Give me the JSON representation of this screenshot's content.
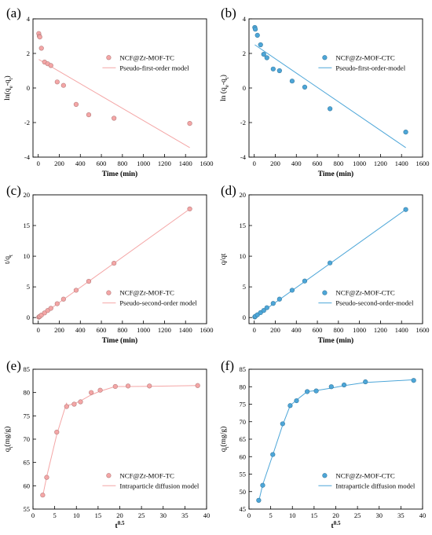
{
  "chart_data": [
    {
      "type": "scatter",
      "panel_label": "(a)",
      "xlabel": "Time (min)",
      "ylabel": "ln(qe-qt)",
      "xlim": [
        -50,
        1600
      ],
      "ylim": [
        -4,
        4
      ],
      "xticks": [
        0,
        200,
        400,
        600,
        800,
        1000,
        1200,
        1400,
        1600
      ],
      "yticks": [
        -4,
        -2,
        0,
        2,
        4
      ],
      "color": "#f4a6a6",
      "legend": {
        "position": "right-top",
        "points": "NCF@Zr-MOF-TC",
        "line": "Pseudo-first-order model"
      },
      "series": [
        {
          "name": "NCF@Zr-MOF-TC",
          "kind": "points",
          "x": [
            5,
            10,
            15,
            30,
            60,
            90,
            120,
            180,
            240,
            360,
            480,
            720,
            1440
          ],
          "y": [
            3.15,
            3.0,
            2.95,
            2.3,
            1.5,
            1.4,
            1.3,
            0.35,
            0.15,
            -0.95,
            -1.55,
            -1.75,
            -2.05
          ]
        },
        {
          "name": "Pseudo-first-order model",
          "kind": "line",
          "x": [
            5,
            1440
          ],
          "y": [
            1.65,
            -3.45
          ]
        }
      ]
    },
    {
      "type": "scatter",
      "panel_label": "(b)",
      "xlabel": "Time (min)",
      "ylabel": "ln (qe-qt)",
      "xlim": [
        -50,
        1600
      ],
      "ylim": [
        -4,
        4
      ],
      "xticks": [
        0,
        200,
        400,
        600,
        800,
        1000,
        1200,
        1400,
        1600
      ],
      "yticks": [
        -4,
        -2,
        0,
        2,
        4
      ],
      "color": "#4da6d8",
      "legend": {
        "position": "right-top",
        "points": "NCF@Zr-MOF-CTC",
        "line": "Pseudo-first-order-model"
      },
      "series": [
        {
          "name": "NCF@Zr-MOF-CTC",
          "kind": "points",
          "x": [
            5,
            10,
            30,
            60,
            90,
            120,
            180,
            240,
            360,
            480,
            720,
            1440
          ],
          "y": [
            3.5,
            3.4,
            3.05,
            2.5,
            1.95,
            1.75,
            1.1,
            1.0,
            0.4,
            0.05,
            -1.2,
            -2.55
          ]
        },
        {
          "name": "Pseudo-first-order-model",
          "kind": "line",
          "x": [
            5,
            1440
          ],
          "y": [
            2.5,
            -3.45
          ]
        }
      ]
    },
    {
      "type": "scatter",
      "panel_label": "(c)",
      "xlabel": "Time (min)",
      "ylabel": "t/qt",
      "xlim": [
        -50,
        1600
      ],
      "ylim": [
        -1,
        20
      ],
      "xticks": [
        0,
        200,
        400,
        600,
        800,
        1000,
        1200,
        1400,
        1600
      ],
      "yticks": [
        0,
        5,
        10,
        15,
        20
      ],
      "color": "#f4a6a6",
      "legend": {
        "position": "right-bottom",
        "points": "NCF@Zr-MOF-TC",
        "line": "Pseudo-second-order model"
      },
      "series": [
        {
          "name": "NCF@Zr-MOF-TC",
          "kind": "points",
          "x": [
            5,
            10,
            15,
            30,
            60,
            90,
            120,
            180,
            240,
            360,
            480,
            720,
            1440
          ],
          "y": [
            0.06,
            0.13,
            0.2,
            0.4,
            0.75,
            1.15,
            1.5,
            2.25,
            3.0,
            4.45,
            5.9,
            8.85,
            17.7
          ]
        },
        {
          "name": "Pseudo-second-order model",
          "kind": "line",
          "x": [
            0,
            1440
          ],
          "y": [
            0.0,
            17.7
          ]
        }
      ]
    },
    {
      "type": "scatter",
      "panel_label": "(d)",
      "xlabel": "Time (min)",
      "ylabel": "q/qt",
      "xlim": [
        -50,
        1600
      ],
      "ylim": [
        -1,
        20
      ],
      "xticks": [
        0,
        200,
        400,
        600,
        800,
        1000,
        1200,
        1400,
        1600
      ],
      "yticks": [
        0,
        5,
        10,
        15,
        20
      ],
      "color": "#4da6d8",
      "legend": {
        "position": "right-bottom",
        "points": "NCF@Zr-MOF-CTC",
        "line": "Pseudo-second-order-model"
      },
      "series": [
        {
          "name": "NCF@Zr-MOF-CTC",
          "kind": "points",
          "x": [
            5,
            10,
            30,
            60,
            90,
            120,
            180,
            240,
            360,
            480,
            720,
            1440
          ],
          "y": [
            0.1,
            0.2,
            0.45,
            0.8,
            1.15,
            1.6,
            2.3,
            3.0,
            4.45,
            5.95,
            8.9,
            17.6
          ]
        },
        {
          "name": "Pseudo-second-order-model",
          "kind": "line",
          "x": [
            0,
            1440
          ],
          "y": [
            0.0,
            17.6
          ]
        }
      ]
    },
    {
      "type": "scatter",
      "panel_label": "(e)",
      "xlabel": "t0.5",
      "ylabel": "qt(mg/g)",
      "xlim": [
        0,
        40
      ],
      "ylim": [
        55,
        85
      ],
      "xticks": [
        0,
        5,
        10,
        15,
        20,
        25,
        30,
        35,
        40
      ],
      "yticks": [
        55,
        60,
        65,
        70,
        75,
        80,
        85
      ],
      "color": "#f4a6a6",
      "legend": {
        "position": "right-bottom",
        "points": "NCF@Zr-MOF-TC",
        "line": "Intraparticle diffusion model"
      },
      "series": [
        {
          "name": "NCF@Zr-MOF-TC",
          "kind": "points",
          "x": [
            2.24,
            3.16,
            5.48,
            7.75,
            9.49,
            10.95,
            13.42,
            15.49,
            18.97,
            21.91,
            26.83,
            37.95
          ],
          "y": [
            58.0,
            61.8,
            71.5,
            77.0,
            77.5,
            78.0,
            80.0,
            80.5,
            81.3,
            81.4,
            81.4,
            81.5
          ]
        },
        {
          "name": "Intraparticle diffusion model",
          "kind": "line",
          "x": [
            2.24,
            3.16,
            5.48,
            7.75,
            7.75,
            9.49,
            10.95,
            13.42,
            15.49,
            18.97,
            18.97,
            21.91,
            26.83,
            37.95
          ],
          "y": [
            57.8,
            62.0,
            71.0,
            77.8,
            77.2,
            77.6,
            78.2,
            79.5,
            80.3,
            81.3,
            81.3,
            81.3,
            81.35,
            81.5
          ]
        }
      ]
    },
    {
      "type": "scatter",
      "panel_label": "(f)",
      "xlabel": "t0.5",
      "ylabel": "qt(mg/g)",
      "xlim": [
        0,
        40
      ],
      "ylim": [
        45,
        85
      ],
      "xticks": [
        0,
        5,
        10,
        15,
        20,
        25,
        30,
        35,
        40
      ],
      "yticks": [
        45,
        50,
        55,
        60,
        65,
        70,
        75,
        80,
        85
      ],
      "color": "#4da6d8",
      "legend": {
        "position": "right-bottom",
        "points": "NCF@Zr-MOF-CTC",
        "line": "Intraparticle diffusion model"
      },
      "series": [
        {
          "name": "NCF@Zr-MOF-CTC",
          "kind": "points",
          "x": [
            2.24,
            3.16,
            5.48,
            7.75,
            9.49,
            10.95,
            13.42,
            15.49,
            18.97,
            21.91,
            26.83,
            37.95
          ],
          "y": [
            47.5,
            51.8,
            60.6,
            69.4,
            74.6,
            76.0,
            78.6,
            78.8,
            80.0,
            80.5,
            81.4,
            81.8
          ]
        },
        {
          "name": "Intraparticle diffusion model",
          "kind": "line",
          "x": [
            2.24,
            3.16,
            5.48,
            7.75,
            9.49,
            10.95,
            13.42,
            15.49,
            18.97,
            21.91,
            26.83,
            37.95
          ],
          "y": [
            47.2,
            52.0,
            60.5,
            69.0,
            74.6,
            76.2,
            78.6,
            78.9,
            79.6,
            80.3,
            81.2,
            82.0
          ]
        }
      ]
    }
  ]
}
